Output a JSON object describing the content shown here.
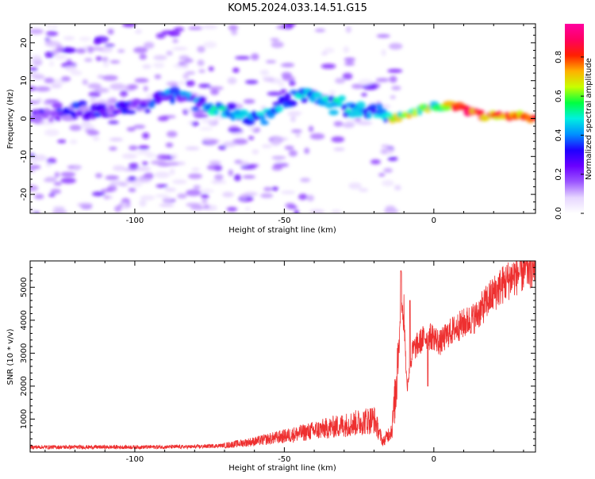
{
  "title": "KOM5.2024.033.14.51.G15",
  "chart_data": [
    {
      "type": "heatmap",
      "xlabel": "Height of straight line (km)",
      "ylabel": "Frequency (Hz)",
      "xlim": [
        -135,
        34
      ],
      "ylim": [
        -25,
        25
      ],
      "xticks": [
        -100,
        -50,
        0
      ],
      "yticks": [
        -20,
        -10,
        0,
        10,
        20
      ],
      "colorbar": {
        "label": "Normalized spectral amplitude",
        "range": [
          0,
          0.97
        ],
        "ticks": [
          0.0,
          0.2,
          0.4,
          0.6,
          0.8
        ],
        "colormap": [
          "#ffffff",
          "#e6d6ff",
          "#9b55ff",
          "#6a00ff",
          "#1f00ff",
          "#0090ff",
          "#00f0e0",
          "#00ff40",
          "#c8ff00",
          "#ffb000",
          "#ff2000",
          "#ff0060",
          "#ff00a0"
        ]
      },
      "features": {
        "line_center": [
          [
            -130,
            1.5
          ],
          [
            -115,
            2
          ],
          [
            -100,
            3
          ],
          [
            -92,
            5
          ],
          [
            -85,
            6
          ],
          [
            -78,
            4
          ],
          [
            -72,
            3.5
          ],
          [
            -65,
            1
          ],
          [
            -58,
            -0.5
          ],
          [
            -52,
            3
          ],
          [
            -45,
            6.5
          ],
          [
            -38,
            5
          ],
          [
            -30,
            3
          ],
          [
            -22,
            2.5
          ],
          [
            -15,
            0
          ],
          [
            -10,
            0.5
          ],
          [
            -5,
            1.8
          ],
          [
            0,
            3
          ],
          [
            5,
            3.5
          ],
          [
            10,
            2.5
          ],
          [
            15,
            1
          ],
          [
            20,
            0.5
          ],
          [
            25,
            0.5
          ],
          [
            34,
            0.5
          ]
        ]
      }
    },
    {
      "type": "line",
      "xlabel": "Height of straight line (km)",
      "ylabel": "SNR (10 * v/v)",
      "xlim": [
        -135,
        34
      ],
      "ylim": [
        0,
        5800
      ],
      "xticks": [
        -100,
        -50,
        0
      ],
      "yticks": [
        1000,
        2000,
        3000,
        4000,
        5000
      ],
      "color": "#ee3030",
      "envelope": [
        [
          -135,
          150
        ],
        [
          -120,
          150
        ],
        [
          -100,
          150
        ],
        [
          -80,
          160
        ],
        [
          -70,
          200
        ],
        [
          -60,
          320
        ],
        [
          -50,
          480
        ],
        [
          -40,
          650
        ],
        [
          -30,
          820
        ],
        [
          -25,
          900
        ],
        [
          -20,
          1000
        ],
        [
          -17,
          300
        ],
        [
          -14,
          700
        ],
        [
          -12,
          2500
        ],
        [
          -11,
          4300
        ],
        [
          -10,
          4000
        ],
        [
          -9,
          2000
        ],
        [
          -7,
          3100
        ],
        [
          -5,
          3300
        ],
        [
          -3,
          3500
        ],
        [
          0,
          3500
        ],
        [
          2,
          3300
        ],
        [
          5,
          3600
        ],
        [
          8,
          3800
        ],
        [
          10,
          3900
        ],
        [
          14,
          4100
        ],
        [
          18,
          4600
        ],
        [
          22,
          5000
        ],
        [
          26,
          5300
        ],
        [
          30,
          5500
        ],
        [
          34,
          5700
        ]
      ],
      "peaks": [
        [
          -11,
          5500
        ],
        [
          -8,
          4600
        ],
        [
          -2,
          2000
        ]
      ]
    }
  ]
}
